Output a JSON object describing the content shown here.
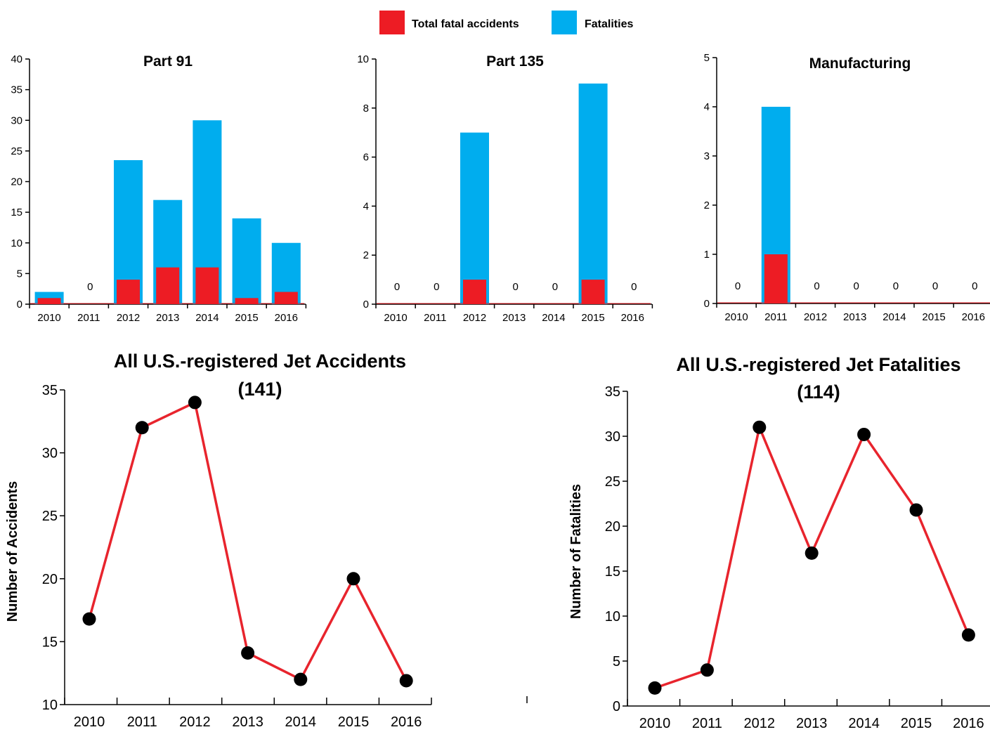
{
  "legend": {
    "items": [
      {
        "label": "Total fatal accidents",
        "color": "#ed1c24"
      },
      {
        "label": "Fatalities",
        "color": "#00adee"
      }
    ]
  },
  "colors": {
    "accidents": "#ed1c24",
    "fatalities": "#00adee",
    "line": "#e8242d",
    "marker": "#000000"
  },
  "chart_data": [
    {
      "type": "bar",
      "title": "Part 91",
      "categories": [
        "2010",
        "2011",
        "2012",
        "2013",
        "2014",
        "2015",
        "2016"
      ],
      "ylim": [
        0,
        40
      ],
      "yticks": [
        0,
        5,
        10,
        15,
        20,
        25,
        30,
        35,
        40
      ],
      "series": [
        {
          "name": "Fatalities",
          "values": [
            2,
            0,
            23.5,
            17,
            30,
            14,
            10
          ]
        },
        {
          "name": "Total fatal accidents",
          "values": [
            1,
            0,
            4,
            6,
            6,
            1,
            2
          ]
        }
      ],
      "zero_labels": [
        "0"
      ]
    },
    {
      "type": "bar",
      "title": "Part 135",
      "categories": [
        "2010",
        "2011",
        "2012",
        "2013",
        "2014",
        "2015",
        "2016"
      ],
      "ylim": [
        0,
        10
      ],
      "yticks": [
        0,
        2,
        4,
        6,
        8,
        10
      ],
      "series": [
        {
          "name": "Fatalities",
          "values": [
            0,
            0,
            7,
            0,
            0,
            9,
            0
          ]
        },
        {
          "name": "Total fatal accidents",
          "values": [
            0,
            0,
            1,
            0,
            0,
            1,
            0
          ]
        }
      ],
      "zero_labels": [
        "0"
      ]
    },
    {
      "type": "bar",
      "title": "Manufacturing",
      "categories": [
        "2010",
        "2011",
        "2012",
        "2013",
        "2014",
        "2015",
        "2016"
      ],
      "ylim": [
        0,
        5
      ],
      "yticks": [
        0,
        1,
        2,
        3,
        4,
        5
      ],
      "series": [
        {
          "name": "Fatalities",
          "values": [
            0,
            4,
            0,
            0,
            0,
            0,
            0
          ]
        },
        {
          "name": "Total fatal accidents",
          "values": [
            0,
            1,
            0,
            0,
            0,
            0,
            0
          ]
        }
      ],
      "zero_labels": [
        "0"
      ]
    },
    {
      "type": "line",
      "title": "All U.S.-registered Jet Accidents",
      "subtitle": "(141)",
      "ylabel": "Number of Accidents",
      "x": [
        "2010",
        "2011",
        "2012",
        "2013",
        "2014",
        "2015",
        "2016"
      ],
      "values": [
        16.8,
        32,
        34,
        14.1,
        12,
        20,
        11.9
      ],
      "ylim": [
        10,
        35
      ],
      "yticks": [
        10,
        15,
        20,
        25,
        30,
        35
      ]
    },
    {
      "type": "line",
      "title": "All U.S.-registered Jet Fatalities",
      "subtitle": "(114)",
      "ylabel": "Number of Fatalities",
      "x": [
        "2010",
        "2011",
        "2012",
        "2013",
        "2014",
        "2015",
        "2016"
      ],
      "values": [
        2,
        4,
        31,
        17,
        30.2,
        21.8,
        7.9
      ],
      "ylim": [
        0,
        35
      ],
      "yticks": [
        0,
        5,
        10,
        15,
        20,
        25,
        30,
        35
      ]
    }
  ]
}
